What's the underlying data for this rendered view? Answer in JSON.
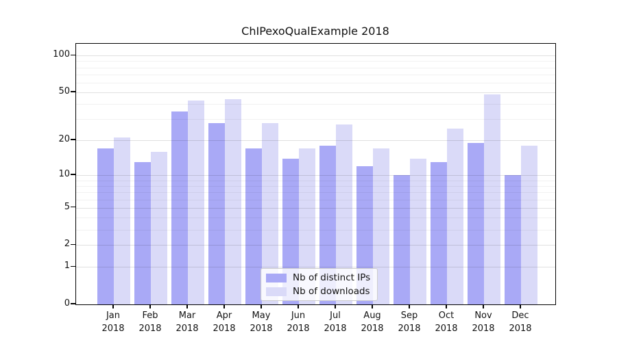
{
  "title": "ChIPexoQualExample 2018",
  "legend": {
    "items": [
      {
        "label": "Nb of distinct IPs",
        "color": "#a9a9f6"
      },
      {
        "label": "Nb of downloads",
        "color": "#dadaf8"
      }
    ]
  },
  "colors": {
    "series_dark": "#a9a9f6",
    "series_light": "#dadaf8",
    "axis": "#000000",
    "grid_major": "#e2e2e2",
    "grid_minor": "#f1f1f1",
    "background": "#ffffff"
  },
  "chart_data": {
    "type": "bar",
    "title": "ChIPexoQualExample 2018",
    "categories": [
      "Jan",
      "Feb",
      "Mar",
      "Apr",
      "May",
      "Jun",
      "Jul",
      "Aug",
      "Sep",
      "Oct",
      "Nov",
      "Dec"
    ],
    "x_year_label": "2018",
    "series": [
      {
        "name": "Nb of distinct IPs",
        "color": "#a9a9f6",
        "values": [
          17,
          13,
          35,
          28,
          17,
          14,
          18,
          12,
          10,
          13,
          19,
          10
        ]
      },
      {
        "name": "Nb of downloads",
        "color": "#dadaf8",
        "values": [
          21,
          16,
          43,
          44,
          28,
          17,
          27,
          17,
          14,
          25,
          48,
          18
        ]
      }
    ],
    "xlabel": "",
    "ylabel": "",
    "yscale": "log1p",
    "ylim": [
      0,
      124
    ],
    "y_major_ticks": [
      0,
      1,
      2,
      5,
      10,
      20,
      50,
      100
    ],
    "y_minor_gridlines": [
      3,
      4,
      6,
      7,
      8,
      9,
      30,
      40,
      60,
      70,
      80,
      90
    ],
    "grid": true,
    "gridlines_above_bars": true,
    "legend_position": "bottom-center"
  }
}
